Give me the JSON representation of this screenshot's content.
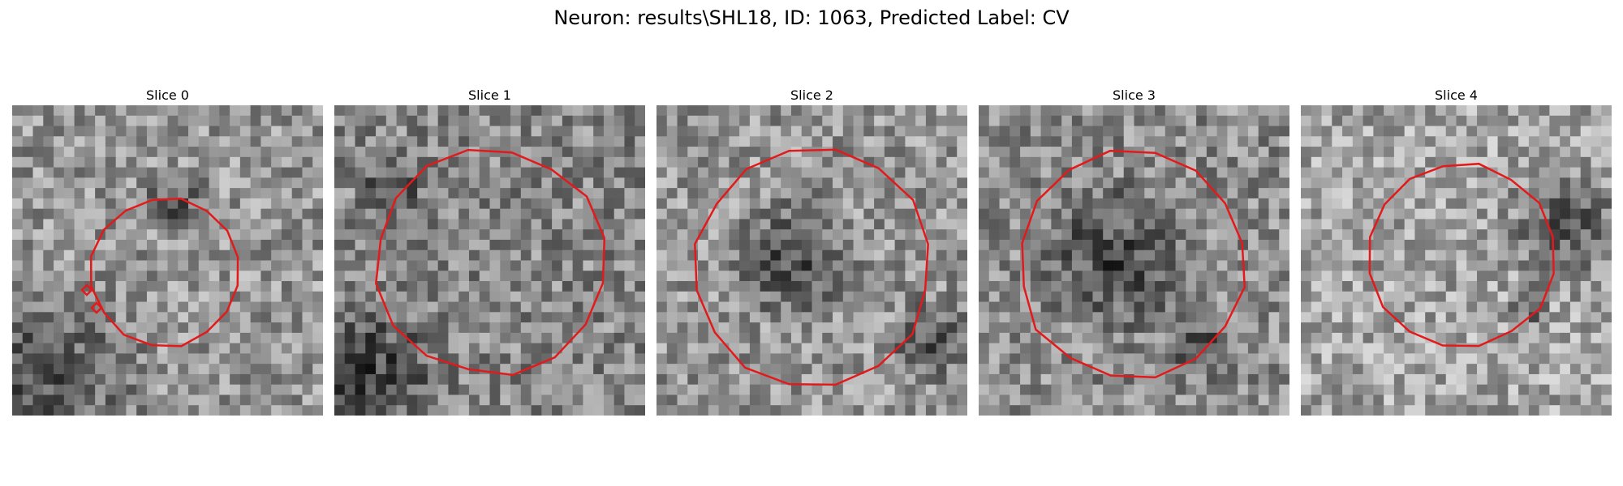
{
  "figure": {
    "suptitle": "Neuron: results\\SHL18, ID: 1063, Predicted Label: CV"
  },
  "colors": {
    "outline": "#e31a1c",
    "background": "#ffffff"
  },
  "panels": [
    {
      "title": "Slice 0",
      "image": "grayscale microscopy patch",
      "overlay": "red ROI outline"
    },
    {
      "title": "Slice 1",
      "image": "grayscale microscopy patch",
      "overlay": "red ROI outline"
    },
    {
      "title": "Slice 2",
      "image": "grayscale microscopy patch",
      "overlay": "red ROI outline"
    },
    {
      "title": "Slice 3",
      "image": "grayscale microscopy patch",
      "overlay": "red ROI outline"
    },
    {
      "title": "Slice 4",
      "image": "grayscale microscopy patch",
      "overlay": "red ROI outline"
    }
  ]
}
